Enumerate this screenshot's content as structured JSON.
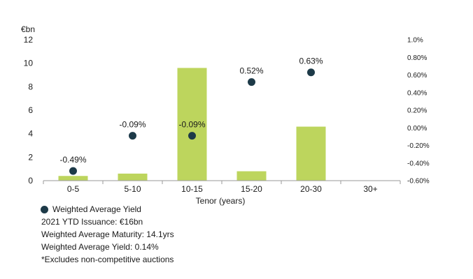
{
  "chart_data": {
    "type": "bar",
    "categories": [
      "0-5",
      "5-10",
      "10-15",
      "15-20",
      "20-30",
      "30+"
    ],
    "series": [
      {
        "kind": "bar",
        "axis": "left",
        "values": [
          0.4,
          0.6,
          9.6,
          0.8,
          4.6,
          0
        ]
      },
      {
        "kind": "scatter",
        "axis": "right",
        "name": "Weighted Average Yield",
        "values": [
          -0.49,
          -0.09,
          -0.09,
          0.52,
          0.63,
          null
        ],
        "labels": [
          "-0.49%",
          "-0.09%",
          "-0.09%",
          "0.52%",
          "0.63%",
          ""
        ]
      }
    ],
    "xlabel": "Tenor (years)",
    "y_left_unit": "€bn",
    "ylim_left": [
      0,
      12
    ],
    "ylim_right": [
      -0.6,
      1.0
    ],
    "yticks_left": [
      "0",
      "2",
      "4",
      "6",
      "8",
      "10",
      "12"
    ],
    "yticks_right": [
      "-0.60%",
      "-0.40%",
      "-0.20%",
      "0.00%",
      "0.20%",
      "0.40%",
      "0.60%",
      "0.80%",
      "1.0%"
    ],
    "colors": {
      "bar": "#bdd55d",
      "dot": "#1d3a48",
      "axis": "#9a9a9a"
    },
    "legend": "bottom-left"
  },
  "notes": {
    "legend_label": "Weighted Average Yield",
    "lines": [
      "2021 YTD Issuance: €16bn",
      "Weighted Average Maturity: 14.1yrs",
      "Weighted Average Yield: 0.14%",
      "*Excludes non-competitive auctions"
    ]
  }
}
